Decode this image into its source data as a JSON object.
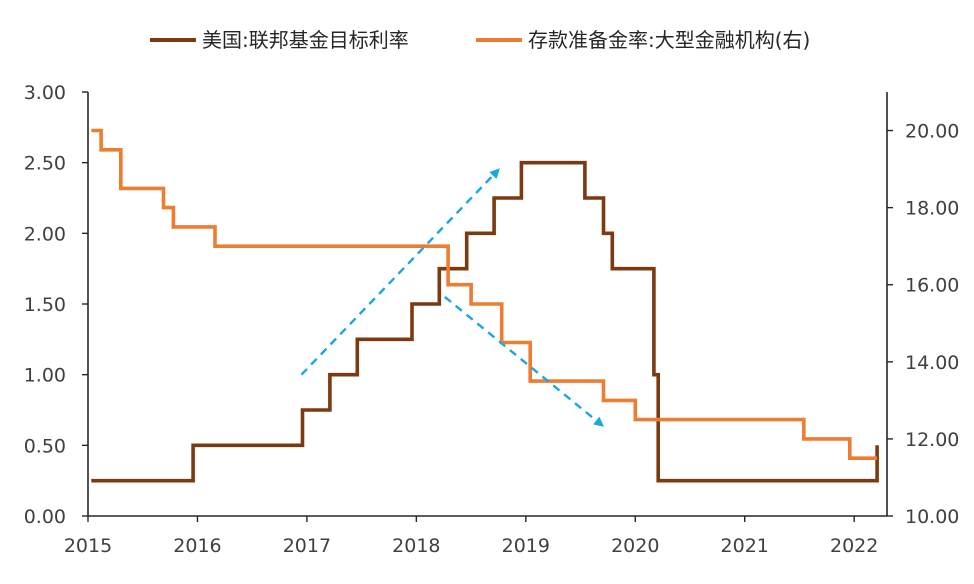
{
  "chart_data": {
    "type": "line",
    "legend": {
      "placement": "top-center",
      "entries": [
        "美国:联邦基金目标利率",
        "存款准备金率:大型金融机构(右)"
      ]
    },
    "x_tick_labels": [
      "2015",
      "2016",
      "2017",
      "2018",
      "2019",
      "2020",
      "2021",
      "2022"
    ],
    "y_left": {
      "min": 0,
      "max": 3,
      "ticks": [
        "0.00",
        "0.50",
        "1.00",
        "1.50",
        "2.00",
        "2.50",
        "3.00"
      ]
    },
    "y_right": {
      "min": 10,
      "max": 21,
      "ticks": [
        "10.00",
        "12.00",
        "14.00",
        "16.00",
        "18.00",
        "20.00"
      ]
    },
    "grid": false,
    "series": [
      {
        "name": "美国:联邦基金目标利率",
        "axis": "left",
        "color": "#7B3A10",
        "step": true,
        "points": [
          [
            2015.03,
            0.25
          ],
          [
            2015.96,
            0.5
          ],
          [
            2016.96,
            0.75
          ],
          [
            2017.21,
            1.0
          ],
          [
            2017.46,
            1.25
          ],
          [
            2017.96,
            1.5
          ],
          [
            2018.21,
            1.75
          ],
          [
            2018.46,
            2.0
          ],
          [
            2018.71,
            2.25
          ],
          [
            2018.96,
            2.5
          ],
          [
            2019.54,
            2.25
          ],
          [
            2019.71,
            2.0
          ],
          [
            2019.79,
            1.75
          ],
          [
            2020.17,
            1.0
          ],
          [
            2020.21,
            0.25
          ],
          [
            2022.21,
            0.5
          ]
        ]
      },
      {
        "name": "存款准备金率:大型金融机构(右)",
        "axis": "right",
        "color": "#ED7D31",
        "step": true,
        "points": [
          [
            2015.03,
            20.0
          ],
          [
            2015.12,
            19.5
          ],
          [
            2015.3,
            18.5
          ],
          [
            2015.69,
            18.0
          ],
          [
            2015.78,
            17.5
          ],
          [
            2016.16,
            17.0
          ],
          [
            2018.29,
            16.0
          ],
          [
            2018.5,
            15.5
          ],
          [
            2018.78,
            14.5
          ],
          [
            2019.04,
            13.5
          ],
          [
            2019.71,
            13.0
          ],
          [
            2020.0,
            12.5
          ],
          [
            2021.54,
            12.0
          ],
          [
            2021.96,
            11.5
          ],
          [
            2022.21,
            11.5
          ]
        ]
      }
    ],
    "annotations": [
      {
        "type": "dashed-arrow",
        "color": "#1AA7E1",
        "from": [
          2016.95,
          1.0
        ],
        "to": [
          2018.75,
          2.45
        ]
      },
      {
        "type": "dashed-arrow",
        "color": "#1AA7E1",
        "from": [
          2018.26,
          1.55
        ],
        "to": [
          2019.7,
          0.64
        ]
      }
    ]
  }
}
